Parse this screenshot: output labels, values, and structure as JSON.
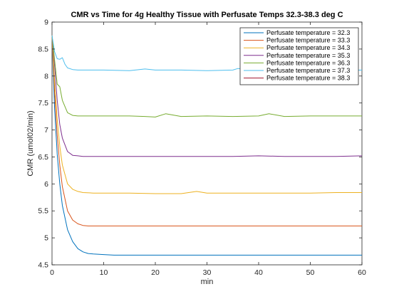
{
  "chart_data": {
    "type": "line",
    "title": "CMR vs Time for 4g Healthy Tissue with Perfusate Temps 32.3-38.3 deg C",
    "xlabel": "min",
    "ylabel": "CMR (umol02/min)",
    "xlim": [
      0,
      60
    ],
    "ylim": [
      4.5,
      9
    ],
    "xticks": [
      0,
      10,
      20,
      30,
      40,
      50,
      60
    ],
    "yticks": [
      4.5,
      5,
      5.5,
      6,
      6.5,
      7,
      7.5,
      8,
      8.5,
      9
    ],
    "xtick_labels": [
      "0",
      "10",
      "20",
      "30",
      "40",
      "50",
      "60"
    ],
    "ytick_labels": [
      "4.5",
      "5",
      "5.5",
      "6",
      "6.5",
      "7",
      "7.5",
      "8",
      "8.5",
      "9"
    ],
    "grid": false,
    "legend_position": "top-right",
    "series": [
      {
        "name": "Perfusate temperature = 32.3",
        "color": "#0072BD",
        "x": [
          0,
          0.5,
          1,
          1.5,
          2,
          3,
          4,
          5,
          6,
          7,
          8,
          10,
          12,
          15,
          20,
          25,
          30,
          35,
          40,
          45,
          50,
          55,
          60
        ],
        "y": [
          8.75,
          7.4,
          6.55,
          6.0,
          5.6,
          5.15,
          4.93,
          4.8,
          4.74,
          4.71,
          4.7,
          4.69,
          4.68,
          4.68,
          4.68,
          4.68,
          4.68,
          4.68,
          4.68,
          4.68,
          4.68,
          4.68,
          4.68
        ]
      },
      {
        "name": "Perfusate temperature = 33.3",
        "color": "#D95319",
        "x": [
          0,
          0.5,
          1,
          1.5,
          2,
          3,
          4,
          5,
          6,
          7,
          8,
          10,
          12,
          15,
          20,
          25,
          30,
          35,
          40,
          45,
          50,
          55,
          60
        ],
        "y": [
          8.75,
          7.7,
          6.9,
          6.35,
          5.95,
          5.5,
          5.33,
          5.26,
          5.23,
          5.22,
          5.22,
          5.22,
          5.22,
          5.22,
          5.22,
          5.22,
          5.22,
          5.22,
          5.22,
          5.22,
          5.22,
          5.22,
          5.22
        ]
      },
      {
        "name": "Perfusate temperature = 34.3",
        "color": "#EDB120",
        "x": [
          0,
          0.5,
          1,
          1.5,
          2,
          3,
          4,
          5,
          6,
          8,
          10,
          15,
          20,
          25,
          28,
          30,
          35,
          40,
          45,
          50,
          55,
          60
        ],
        "y": [
          8.75,
          7.9,
          7.2,
          6.7,
          6.35,
          6.0,
          5.9,
          5.86,
          5.84,
          5.83,
          5.83,
          5.83,
          5.82,
          5.82,
          5.86,
          5.83,
          5.83,
          5.83,
          5.83,
          5.83,
          5.84,
          5.84
        ]
      },
      {
        "name": "Perfusate temperature = 35.3",
        "color": "#7E2F8E",
        "x": [
          0,
          0.5,
          1,
          1.5,
          2,
          3,
          4,
          5,
          6,
          8,
          10,
          15,
          20,
          25,
          30,
          35,
          40,
          45,
          50,
          55,
          60
        ],
        "y": [
          8.75,
          8.2,
          7.55,
          7.1,
          6.85,
          6.6,
          6.53,
          6.52,
          6.51,
          6.51,
          6.51,
          6.51,
          6.51,
          6.51,
          6.51,
          6.51,
          6.52,
          6.51,
          6.51,
          6.51,
          6.52
        ]
      },
      {
        "name": "Perfusate temperature = 36.3",
        "color": "#77AC30",
        "x": [
          0,
          0.5,
          1,
          1.5,
          2,
          3,
          4,
          5,
          6,
          8,
          10,
          15,
          18,
          20,
          22,
          25,
          30,
          35,
          40,
          42,
          45,
          50,
          55,
          60
        ],
        "y": [
          8.75,
          8.3,
          7.85,
          7.8,
          7.55,
          7.32,
          7.27,
          7.26,
          7.26,
          7.26,
          7.26,
          7.26,
          7.25,
          7.24,
          7.3,
          7.25,
          7.26,
          7.25,
          7.26,
          7.3,
          7.25,
          7.26,
          7.26,
          7.26
        ]
      },
      {
        "name": "Perfusate temperature = 37.3",
        "color": "#4DBEEE",
        "x": [
          0,
          0.5,
          1,
          1.5,
          2,
          2.5,
          3,
          4,
          5,
          6,
          8,
          10,
          15,
          18,
          20,
          25,
          30,
          35,
          36,
          40,
          45,
          50,
          55,
          60
        ],
        "y": [
          8.75,
          8.45,
          8.32,
          8.31,
          8.34,
          8.22,
          8.15,
          8.12,
          8.11,
          8.11,
          8.11,
          8.11,
          8.1,
          8.13,
          8.11,
          8.11,
          8.1,
          8.11,
          8.14,
          8.11,
          8.11,
          8.11,
          8.1,
          8.11
        ]
      },
      {
        "name": "Perfusate temperature = 38.3",
        "color": "#A2142F",
        "x": [],
        "y": []
      }
    ]
  }
}
